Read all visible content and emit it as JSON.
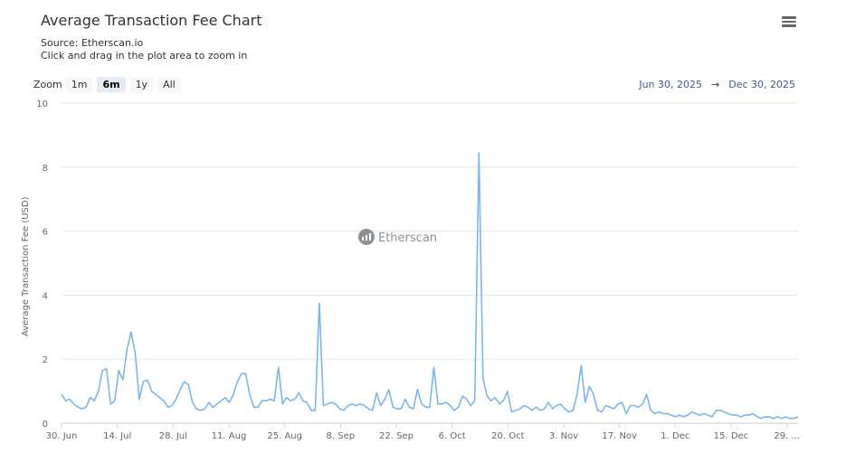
{
  "header": {
    "title": "Average Transaction Fee Chart",
    "source": "Source: Etherscan.io",
    "hint": "Click and drag in the plot area to zoom in",
    "menu_icon": "hamburger-menu-icon"
  },
  "zoom": {
    "label": "Zoom",
    "buttons": [
      "1m",
      "6m",
      "1y",
      "All"
    ],
    "active": "6m"
  },
  "range": {
    "from": "Jun 30, 2025",
    "separator": "→",
    "to": "Dec 30, 2025"
  },
  "watermark": "Etherscan",
  "colors": {
    "line": "#7cb5ec",
    "grid": "#e6e6e6",
    "range_text": "#3a5a8c"
  },
  "chart_data": {
    "type": "line",
    "title": "Average Transaction Fee Chart",
    "ylabel": "Average Transaction Fee (USD)",
    "xlabel": "",
    "ylim": [
      0,
      10
    ],
    "yticks": [
      "0",
      "2",
      "4",
      "6",
      "8",
      "10"
    ],
    "xticks": [
      "30. Jun",
      "14. Jul",
      "28. Jul",
      "11. Aug",
      "25. Aug",
      "8. Sep",
      "22. Sep",
      "6. Oct",
      "20. Oct",
      "3. Nov",
      "17. Nov",
      "1. Dec",
      "15. Dec",
      "29. ..."
    ],
    "grid": true,
    "series": [
      {
        "values": [
          0.9,
          0.7,
          0.75,
          0.6,
          0.5,
          0.45,
          0.5,
          0.8,
          0.7,
          1.0,
          1.65,
          1.7,
          0.6,
          0.7,
          1.65,
          1.35,
          2.3,
          2.85,
          2.2,
          0.75,
          1.3,
          1.35,
          1.0,
          0.9,
          0.8,
          0.7,
          0.5,
          0.55,
          0.75,
          1.05,
          1.3,
          1.2,
          0.65,
          0.45,
          0.4,
          0.45,
          0.65,
          0.5,
          0.6,
          0.7,
          0.8,
          0.65,
          0.9,
          1.3,
          1.55,
          1.55,
          0.9,
          0.5,
          0.5,
          0.7,
          0.7,
          0.75,
          0.7,
          1.75,
          0.6,
          0.8,
          0.7,
          0.75,
          0.95,
          0.7,
          0.65,
          0.4,
          0.4,
          3.75,
          0.55,
          0.6,
          0.65,
          0.6,
          0.45,
          0.4,
          0.55,
          0.6,
          0.55,
          0.6,
          0.55,
          0.45,
          0.4,
          0.95,
          0.55,
          0.75,
          1.05,
          0.5,
          0.45,
          0.45,
          0.75,
          0.5,
          0.45,
          1.05,
          0.6,
          0.5,
          0.5,
          1.75,
          0.6,
          0.6,
          0.65,
          0.55,
          0.4,
          0.5,
          0.85,
          0.75,
          0.55,
          0.7,
          8.45,
          1.4,
          0.85,
          0.7,
          0.8,
          0.6,
          0.7,
          1.0,
          0.35,
          0.4,
          0.45,
          0.55,
          0.5,
          0.4,
          0.5,
          0.4,
          0.45,
          0.65,
          0.45,
          0.55,
          0.6,
          0.45,
          0.35,
          0.4,
          0.9,
          1.8,
          0.65,
          1.15,
          0.9,
          0.4,
          0.35,
          0.55,
          0.5,
          0.45,
          0.6,
          0.65,
          0.3,
          0.55,
          0.55,
          0.5,
          0.6,
          0.9,
          0.4,
          0.3,
          0.35,
          0.3,
          0.3,
          0.25,
          0.2,
          0.25,
          0.2,
          0.25,
          0.35,
          0.3,
          0.25,
          0.3,
          0.25,
          0.2,
          0.4,
          0.4,
          0.35,
          0.3,
          0.25,
          0.25,
          0.2,
          0.25,
          0.25,
          0.3,
          0.2,
          0.15,
          0.2,
          0.2,
          0.15,
          0.2,
          0.15,
          0.2,
          0.15,
          0.15,
          0.2
        ]
      }
    ]
  }
}
